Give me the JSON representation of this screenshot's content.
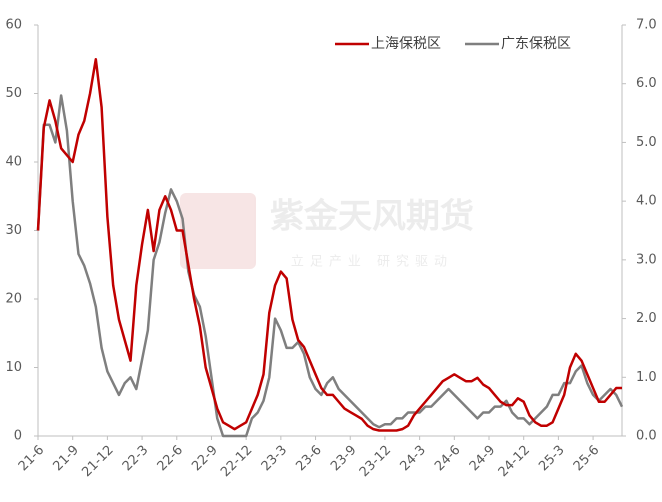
{
  "chart_data": {
    "type": "line",
    "watermark": {
      "title": "紫金天风期货",
      "subtitle": "立足产业 研究驱动"
    },
    "categories": [
      "21-6",
      null,
      null,
      null,
      null,
      null,
      "21-9",
      null,
      null,
      null,
      null,
      null,
      "21-12",
      null,
      null,
      null,
      null,
      null,
      "22-3",
      null,
      null,
      null,
      null,
      null,
      "22-6",
      null,
      null,
      null,
      null,
      null,
      "22-9",
      null,
      null,
      null,
      null,
      null,
      "22-12",
      null,
      null,
      null,
      null,
      null,
      "23-3",
      null,
      null,
      null,
      null,
      null,
      "23-6",
      null,
      null,
      null,
      null,
      null,
      "23-9",
      null,
      null,
      null,
      null,
      null,
      "23-12",
      null,
      null,
      null,
      null,
      null,
      "24-3",
      null,
      null,
      null,
      null,
      null,
      "24-6",
      null,
      null,
      null,
      null,
      null,
      "24-9",
      null,
      null,
      null,
      null,
      null,
      "24-12",
      null,
      null,
      null,
      null,
      null,
      "25-3",
      null,
      null,
      null,
      null,
      null,
      "25-6",
      null,
      null,
      null,
      null,
      null
    ],
    "series": [
      {
        "name": "上海保税区",
        "color": "#c00000",
        "values": [
          30,
          45,
          49,
          46,
          42,
          41,
          40,
          44,
          46,
          50,
          55,
          48,
          32,
          22,
          17,
          14,
          11,
          22,
          28,
          33,
          27,
          33,
          35,
          33,
          30,
          30,
          25,
          20,
          16,
          10,
          7,
          4,
          2,
          1.5,
          1,
          1.5,
          2,
          4,
          6,
          9,
          18,
          22,
          24,
          23,
          17,
          14,
          13,
          11,
          9,
          7,
          6,
          6,
          5,
          4,
          3.5,
          3,
          2.5,
          1.5,
          1,
          0.8,
          0.8,
          0.8,
          0.8,
          1,
          1.5,
          3,
          4,
          5,
          6,
          7,
          8,
          8.5,
          9,
          8.5,
          8,
          8,
          8.5,
          7.5,
          7,
          6,
          5,
          4.5,
          4.5,
          5.5,
          5,
          3,
          2,
          1.5,
          1.5,
          2,
          4,
          6,
          10,
          12,
          11,
          9,
          7,
          5,
          5,
          6,
          7,
          7
        ]
      },
      {
        "name": "广东保税区",
        "color": "#7f7f7f",
        "axis": "y2",
        "values": [
          3.5,
          5.3,
          5.3,
          5.0,
          5.8,
          5.2,
          4.0,
          3.1,
          2.9,
          2.6,
          2.2,
          1.5,
          1.1,
          0.9,
          0.7,
          0.9,
          1.0,
          0.8,
          1.3,
          1.8,
          3.0,
          3.3,
          3.8,
          4.2,
          4.0,
          3.7,
          2.8,
          2.4,
          2.2,
          1.7,
          1.0,
          0.3,
          0,
          0,
          0,
          0,
          0,
          0.3,
          0.4,
          0.6,
          1.0,
          2.0,
          1.8,
          1.5,
          1.5,
          1.6,
          1.4,
          1.0,
          0.8,
          0.7,
          0.9,
          1.0,
          0.8,
          0.7,
          0.6,
          0.5,
          0.4,
          0.3,
          0.2,
          0.15,
          0.2,
          0.2,
          0.3,
          0.3,
          0.4,
          0.4,
          0.4,
          0.5,
          0.5,
          0.6,
          0.7,
          0.8,
          0.7,
          0.6,
          0.5,
          0.4,
          0.3,
          0.4,
          0.4,
          0.5,
          0.5,
          0.6,
          0.4,
          0.3,
          0.3,
          0.2,
          0.3,
          0.4,
          0.5,
          0.7,
          0.7,
          0.9,
          0.9,
          1.1,
          1.2,
          0.9,
          0.7,
          0.6,
          0.7,
          0.8,
          0.7,
          0.5
        ]
      }
    ],
    "ylim": [
      0,
      60
    ],
    "yticks": [
      0,
      10,
      20,
      30,
      40,
      50,
      60
    ],
    "y2lim": [
      0,
      7
    ],
    "y2ticks": [
      {
        "value": 0,
        "label": "0.0"
      },
      {
        "value": 1,
        "label": "1.0"
      },
      {
        "value": 2,
        "label": "2.0"
      },
      {
        "value": 3,
        "label": "3.0"
      },
      {
        "value": 4,
        "label": "4.0"
      },
      {
        "value": 5,
        "label": "5.0"
      },
      {
        "value": 6,
        "label": "6.0"
      },
      {
        "value": 7,
        "label": "7.0"
      }
    ],
    "grid": false,
    "legend": "top-right"
  }
}
